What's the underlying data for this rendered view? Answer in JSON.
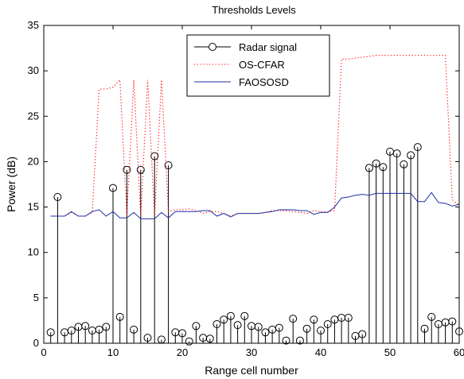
{
  "chart_data": {
    "type": "line",
    "title": "Thresholds Levels",
    "xlabel": "Range cell number",
    "ylabel": "Power (dB)",
    "xlim": [
      0,
      60
    ],
    "ylim": [
      0,
      35
    ],
    "xticks": [
      0,
      10,
      20,
      30,
      40,
      50,
      60
    ],
    "yticks": [
      0,
      5,
      10,
      15,
      20,
      25,
      30,
      35
    ],
    "grid": false,
    "legend_position": "top-center",
    "series": [
      {
        "name": "Radar signal",
        "kind": "stem",
        "color": "#000000",
        "x": [
          1,
          2,
          3,
          4,
          5,
          6,
          7,
          8,
          9,
          10,
          11,
          12,
          13,
          14,
          15,
          16,
          17,
          18,
          19,
          20,
          21,
          22,
          23,
          24,
          25,
          26,
          27,
          28,
          29,
          30,
          31,
          32,
          33,
          34,
          35,
          36,
          37,
          38,
          39,
          40,
          41,
          42,
          43,
          44,
          45,
          46,
          47,
          48,
          49,
          50,
          51,
          52,
          53,
          54,
          55,
          56,
          57,
          58,
          59,
          60
        ],
        "y": [
          1.2,
          16.1,
          1.2,
          1.4,
          1.8,
          1.9,
          1.4,
          1.5,
          1.8,
          17.1,
          2.9,
          19.1,
          1.5,
          19.1,
          0.6,
          20.6,
          0.4,
          19.6,
          1.2,
          1.1,
          0.2,
          1.9,
          0.6,
          0.5,
          2.1,
          2.6,
          3.0,
          2.0,
          3.0,
          1.9,
          1.8,
          1.2,
          1.5,
          1.7,
          0.3,
          2.7,
          0.3,
          1.6,
          2.6,
          1.4,
          2.1,
          2.6,
          2.8,
          2.8,
          0.8,
          1.0,
          19.3,
          19.8,
          19.4,
          21.1,
          20.9,
          19.7,
          20.7,
          21.6,
          1.6,
          2.9,
          2.1,
          2.3,
          2.4,
          1.3
        ]
      },
      {
        "name": "OS-CFAR",
        "kind": "dotted",
        "color": "#ff0000",
        "x": [
          1,
          2,
          3,
          4,
          5,
          6,
          7,
          8,
          9,
          10,
          11,
          12,
          13,
          14,
          15,
          16,
          17,
          18,
          19,
          20,
          21,
          22,
          23,
          24,
          25,
          26,
          27,
          28,
          29,
          30,
          31,
          32,
          33,
          34,
          35,
          36,
          37,
          38,
          39,
          40,
          41,
          42,
          43,
          44,
          45,
          46,
          47,
          48,
          49,
          50,
          51,
          52,
          53,
          54,
          55,
          56,
          57,
          58,
          59,
          60
        ],
        "y": [
          14.0,
          14.0,
          14.0,
          14.4,
          14.0,
          14.0,
          14.4,
          28.0,
          28.0,
          28.2,
          29.0,
          14.0,
          29.0,
          14.0,
          29.0,
          14.0,
          29.0,
          14.5,
          14.7,
          14.7,
          14.8,
          14.6,
          14.3,
          14.5,
          14.5,
          14.3,
          14.0,
          14.3,
          14.3,
          14.3,
          14.3,
          14.4,
          14.6,
          14.6,
          14.6,
          14.5,
          14.4,
          14.3,
          14.6,
          14.5,
          14.5,
          14.6,
          31.3,
          31.3,
          31.4,
          31.5,
          31.6,
          31.7,
          31.7,
          31.7,
          31.7,
          31.7,
          31.7,
          31.7,
          31.7,
          31.7,
          31.7,
          31.7,
          15.8,
          15.2
        ]
      },
      {
        "name": "FAOSOSD",
        "kind": "line",
        "color": "#1f2fa6",
        "x": [
          1,
          2,
          3,
          4,
          5,
          6,
          7,
          8,
          9,
          10,
          11,
          12,
          13,
          14,
          15,
          16,
          17,
          18,
          19,
          20,
          21,
          22,
          23,
          24,
          25,
          26,
          27,
          28,
          29,
          30,
          31,
          32,
          33,
          34,
          35,
          36,
          37,
          38,
          39,
          40,
          41,
          42,
          43,
          44,
          45,
          46,
          47,
          48,
          49,
          50,
          51,
          52,
          53,
          54,
          55,
          56,
          57,
          58,
          59,
          60
        ],
        "y": [
          14.0,
          14.0,
          14.0,
          14.5,
          14.0,
          14.0,
          14.5,
          14.7,
          14.0,
          14.5,
          13.8,
          13.8,
          14.4,
          13.7,
          13.7,
          13.7,
          14.4,
          13.8,
          14.5,
          14.5,
          14.5,
          14.5,
          14.6,
          14.6,
          14.0,
          14.3,
          13.9,
          14.3,
          14.3,
          14.3,
          14.3,
          14.4,
          14.5,
          14.7,
          14.7,
          14.7,
          14.6,
          14.6,
          14.2,
          14.4,
          14.4,
          15.0,
          16.0,
          16.1,
          16.3,
          16.4,
          16.3,
          16.5,
          16.5,
          16.5,
          16.5,
          16.5,
          16.5,
          15.6,
          15.6,
          16.6,
          15.5,
          15.4,
          15.1,
          15.3
        ]
      }
    ]
  }
}
